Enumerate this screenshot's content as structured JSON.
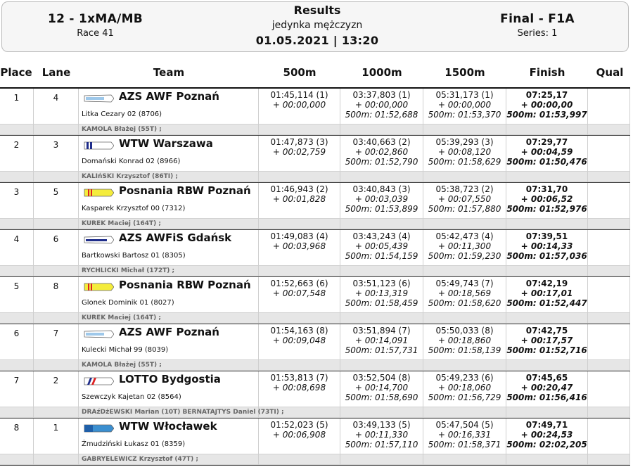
{
  "header": {
    "event": "12 - 1xMA/MB",
    "race": "Race 41",
    "title": "Results",
    "subtitle": "jedynka mężczyzn",
    "datetime": "01.05.2021 | 13:20",
    "final": "Final - F1A",
    "series": "Series: 1"
  },
  "columns": {
    "place": "Place",
    "lane": "Lane",
    "team": "Team",
    "c500": "500m",
    "c1000": "1000m",
    "c1500": "1500m",
    "finish": "Finish",
    "qual": "Qual"
  },
  "colors": {
    "header_bg": "#f6f6f6",
    "bar_bg": "#e6e6e6",
    "coach_text": "#666666"
  },
  "rows": [
    {
      "place": "1",
      "lane": "4",
      "club": "AZS AWF Poznań",
      "flag": "azs",
      "athlete": "Litka Cezary 02 (8706)",
      "coach": "KAMOLA Błażej (55T) ;",
      "t500": "01:45,114 (1)",
      "d500": "+ 00:00,000",
      "t1000": "03:37,803 (1)",
      "d1000": "+ 00:00,000",
      "s1000": "500m: 01:52,688",
      "t1500": "05:31,173 (1)",
      "d1500": "+ 00:00,000",
      "s1500": "500m: 01:53,370",
      "tfin": "07:25,17",
      "dfin": "+ 00:00,00",
      "sfin": "500m: 01:53,997"
    },
    {
      "place": "2",
      "lane": "3",
      "club": "WTW Warszawa",
      "flag": "wtw",
      "athlete": "Domański Konrad 02 (8966)",
      "coach": "KALIńSKI Krzysztof (86TI) ;",
      "t500": "01:47,873 (3)",
      "d500": "+ 00:02,759",
      "t1000": "03:40,663 (2)",
      "d1000": "+ 00:02,860",
      "s1000": "500m: 01:52,790",
      "t1500": "05:39,293 (3)",
      "d1500": "+ 00:08,120",
      "s1500": "500m: 01:58,629",
      "tfin": "07:29,77",
      "dfin": "+ 00:04,59",
      "sfin": "500m: 01:50,476"
    },
    {
      "place": "3",
      "lane": "5",
      "club": "Posnania RBW Poznań",
      "flag": "posnania",
      "athlete": "Kasparek Krzysztof 00 (7312)",
      "coach": "KUREK Maciej (164T) ;",
      "t500": "01:46,943 (2)",
      "d500": "+ 00:01,828",
      "t1000": "03:40,843 (3)",
      "d1000": "+ 00:03,039",
      "s1000": "500m: 01:53,899",
      "t1500": "05:38,723 (2)",
      "d1500": "+ 00:07,550",
      "s1500": "500m: 01:57,880",
      "tfin": "07:31,70",
      "dfin": "+ 00:06,52",
      "sfin": "500m: 01:52,976"
    },
    {
      "place": "4",
      "lane": "6",
      "club": "AZS AWFiS Gdańsk",
      "flag": "gdansk",
      "athlete": "Bartkowski Bartosz 01 (8305)",
      "coach": "RYCHLICKI Michał (172T) ;",
      "t500": "01:49,083 (4)",
      "d500": "+ 00:03,968",
      "t1000": "03:43,243 (4)",
      "d1000": "+ 00:05,439",
      "s1000": "500m: 01:54,159",
      "t1500": "05:42,473 (4)",
      "d1500": "+ 00:11,300",
      "s1500": "500m: 01:59,230",
      "tfin": "07:39,51",
      "dfin": "+ 00:14,33",
      "sfin": "500m: 01:57,036"
    },
    {
      "place": "5",
      "lane": "8",
      "club": "Posnania RBW Poznań",
      "flag": "posnania",
      "athlete": "Glonek Dominik 01 (8027)",
      "coach": "KUREK Maciej (164T) ;",
      "t500": "01:52,663 (6)",
      "d500": "+ 00:07,548",
      "t1000": "03:51,123 (6)",
      "d1000": "+ 00:13,319",
      "s1000": "500m: 01:58,459",
      "t1500": "05:49,743 (7)",
      "d1500": "+ 00:18,569",
      "s1500": "500m: 01:58,620",
      "tfin": "07:42,19",
      "dfin": "+ 00:17,01",
      "sfin": "500m: 01:52,447"
    },
    {
      "place": "6",
      "lane": "7",
      "club": "AZS AWF Poznań",
      "flag": "azs",
      "athlete": "Kulecki Michał 99 (8039)",
      "coach": "KAMOLA Błażej (55T) ;",
      "t500": "01:54,163 (8)",
      "d500": "+ 00:09,048",
      "t1000": "03:51,894 (7)",
      "d1000": "+ 00:14,091",
      "s1000": "500m: 01:57,731",
      "t1500": "05:50,033 (8)",
      "d1500": "+ 00:18,860",
      "s1500": "500m: 01:58,139",
      "tfin": "07:42,75",
      "dfin": "+ 00:17,57",
      "sfin": "500m: 01:52,716"
    },
    {
      "place": "7",
      "lane": "2",
      "club": "LOTTO Bydgostia",
      "flag": "lotto",
      "athlete": "Szewczyk Kajetan 02 (8564)",
      "coach": "DRAźDżEWSKI Marian (10T) BERNATAJTYS Daniel (73TI) ;",
      "t500": "01:53,813 (7)",
      "d500": "+ 00:08,698",
      "t1000": "03:52,504 (8)",
      "d1000": "+ 00:14,700",
      "s1000": "500m: 01:58,690",
      "t1500": "05:49,233 (6)",
      "d1500": "+ 00:18,060",
      "s1500": "500m: 01:56,729",
      "tfin": "07:45,65",
      "dfin": "+ 00:20,47",
      "sfin": "500m: 01:56,416"
    },
    {
      "place": "8",
      "lane": "1",
      "club": "WTW Włocławek",
      "flag": "wloclawek",
      "athlete": "Żmudziński Łukasz 01 (8359)",
      "coach": "GABRYELEWICZ Krzysztof (47T) ;",
      "t500": "01:52,023 (5)",
      "d500": "+ 00:06,908",
      "t1000": "03:49,133 (5)",
      "d1000": "+ 00:11,330",
      "s1000": "500m: 01:57,110",
      "t1500": "05:47,504 (5)",
      "d1500": "+ 00:16,331",
      "s1500": "500m: 01:58,371",
      "tfin": "07:49,71",
      "dfin": "+ 00:24,53",
      "sfin": "500m: 02:02,205"
    }
  ]
}
